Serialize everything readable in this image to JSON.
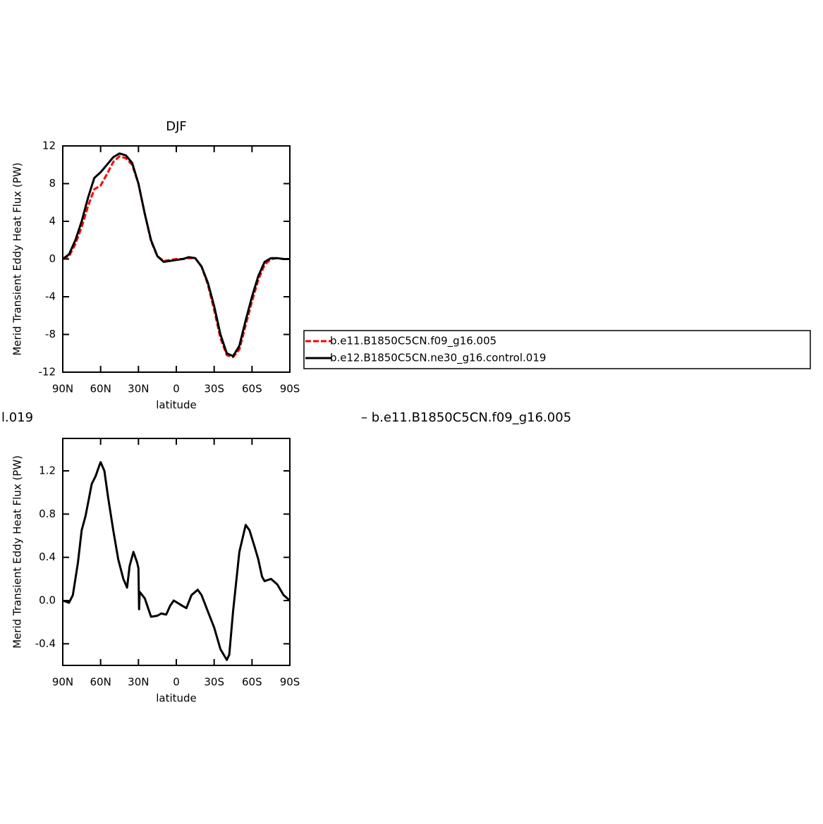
{
  "chart_data": [
    {
      "type": "line",
      "title": "DJF",
      "ylabel": "Merid Transient Eddy Heat Flux (PW)",
      "xlabel": "latitude",
      "xlim": [
        90,
        -90
      ],
      "xticks": [
        {
          "value": 90,
          "label": "90N"
        },
        {
          "value": 60,
          "label": "60N"
        },
        {
          "value": 30,
          "label": "30N"
        },
        0,
        {
          "value": -30,
          "label": "30S"
        },
        {
          "value": -60,
          "label": "60S"
        },
        {
          "value": -90,
          "label": "90S"
        }
      ],
      "ylim": [
        -12,
        12
      ],
      "yticks": [
        -12,
        -8,
        -4,
        0,
        4,
        8,
        12
      ],
      "x": [
        90,
        85,
        80,
        75,
        70,
        65,
        60,
        55,
        50,
        45,
        40,
        35,
        30,
        25,
        20,
        15,
        10,
        5,
        0,
        -5,
        -10,
        -15,
        -20,
        -25,
        -30,
        -35,
        -40,
        -45,
        -50,
        -55,
        -60,
        -65,
        -70,
        -75,
        -80,
        -85,
        -90
      ],
      "series": [
        {
          "name": "b.e11.B1850C5CN.f09_g16.005",
          "color": "#ff0000",
          "line_style": "dashed",
          "values": [
            0,
            0.3,
            1.6,
            3.4,
            5.6,
            7.4,
            7.8,
            9,
            10.3,
            10.9,
            10.7,
            10,
            8,
            4.8,
            1.9,
            0.3,
            -0.2,
            -0.1,
            0,
            0,
            0.1,
            0.1,
            -0.8,
            -2.7,
            -5.4,
            -8.4,
            -10.2,
            -10.4,
            -9.6,
            -7,
            -4.5,
            -2.2,
            -0.6,
            0,
            0.1,
            0,
            0
          ]
        },
        {
          "name": "b.e12.B1850C5CN.ne30_g16.control.019",
          "color": "#000000",
          "line_style": "solid",
          "values": [
            0,
            0.5,
            2,
            4,
            6.5,
            8.6,
            9.2,
            10,
            10.8,
            11.2,
            11,
            10.2,
            8,
            4.8,
            2,
            0.3,
            -0.3,
            -0.2,
            -0.1,
            0,
            0.2,
            0.1,
            -0.8,
            -2.5,
            -5,
            -8,
            -10,
            -10.3,
            -9.2,
            -6.5,
            -4,
            -1.8,
            -0.3,
            0.1,
            0.1,
            0,
            0
          ]
        }
      ]
    },
    {
      "type": "line",
      "title_left": "l.019",
      "title_right": "– b.e11.B1850C5CN.f09_g16.005",
      "ylabel": "Merid Transient Eddy Heat Flux (PW)",
      "xlabel": "latitude",
      "xlim": [
        90,
        -90
      ],
      "xticks": [
        {
          "value": 90,
          "label": "90N"
        },
        {
          "value": 60,
          "label": "60N"
        },
        {
          "value": 30,
          "label": "30N"
        },
        0,
        {
          "value": -30,
          "label": "30S"
        },
        {
          "value": -60,
          "label": "60S"
        },
        {
          "value": -90,
          "label": "90S"
        }
      ],
      "ylim": [
        -0.6,
        1.5
      ],
      "yticks": [
        -0.4,
        {
          "value": 0,
          "label": "0.0"
        },
        0.4,
        0.8,
        1.2
      ],
      "x": [
        90,
        85,
        82,
        78,
        75,
        72,
        70,
        67,
        64,
        61,
        60,
        57,
        54,
        50,
        46,
        42,
        39,
        37,
        34,
        31,
        30,
        29.5,
        29,
        25,
        20,
        15,
        12,
        8,
        5,
        2,
        -5,
        -8,
        -12,
        -17,
        -20,
        -25,
        -30,
        -35,
        -40,
        -42,
        -45,
        -50,
        -55,
        -58,
        -62,
        -65,
        -68,
        -70,
        -75,
        -80,
        -85,
        -90
      ],
      "series": [
        {
          "color": "#000000",
          "line_style": "solid",
          "values": [
            0,
            -0.02,
            0.05,
            0.35,
            0.65,
            0.78,
            0.9,
            1.08,
            1.15,
            1.25,
            1.28,
            1.2,
            0.95,
            0.65,
            0.38,
            0.2,
            0.12,
            0.32,
            0.45,
            0.35,
            0.3,
            -0.08,
            0.08,
            0.02,
            -0.15,
            -0.14,
            -0.12,
            -0.13,
            -0.05,
            0,
            -0.05,
            -0.07,
            0.05,
            0.1,
            0.05,
            -0.1,
            -0.25,
            -0.45,
            -0.55,
            -0.5,
            -0.1,
            0.45,
            0.7,
            0.65,
            0.5,
            0.38,
            0.22,
            0.18,
            0.2,
            0.15,
            0.05,
            0
          ]
        }
      ]
    }
  ]
}
